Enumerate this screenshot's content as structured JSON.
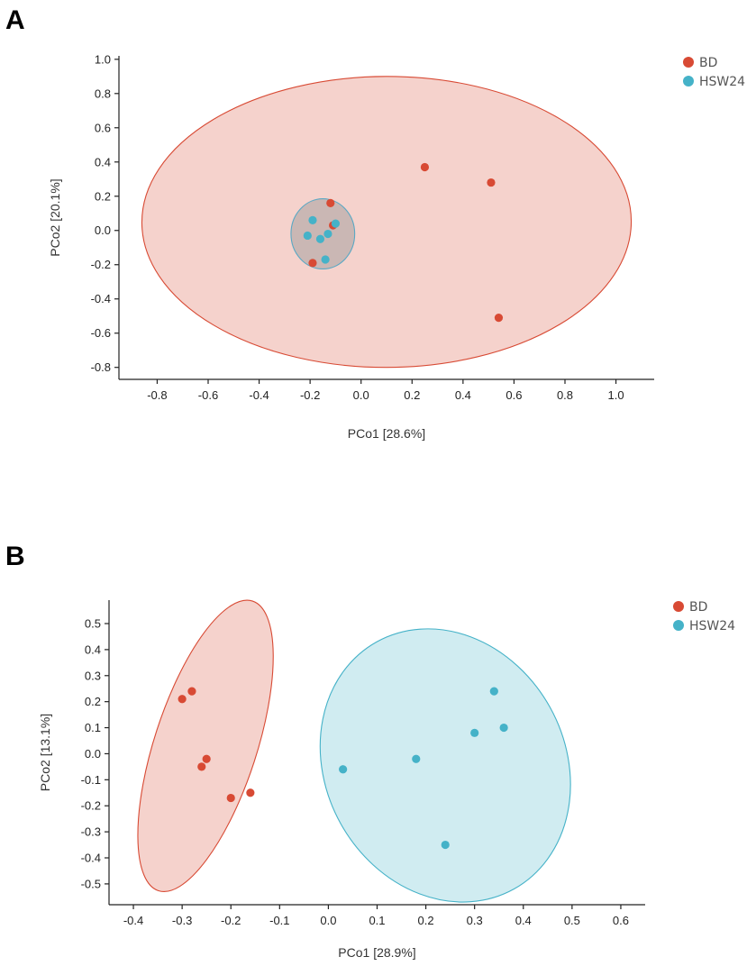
{
  "colors": {
    "BD": "#d84a34",
    "HSW24": "#45b2c8"
  },
  "chart_data": [
    {
      "panel": "A",
      "type": "scatter",
      "xlabel": "PCo1 [28.6%]",
      "ylabel": "PCo2 [20.1%]",
      "xlim": [
        -0.95,
        1.15
      ],
      "ylim": [
        -0.87,
        1.02
      ],
      "xticks": [
        -0.8,
        -0.6,
        -0.4,
        -0.2,
        0.0,
        0.2,
        0.4,
        0.6,
        0.8,
        1.0
      ],
      "xtick_labels": [
        "-0.8",
        "-0.6",
        "-0.4",
        "-0.2",
        "0.0",
        "0.2",
        "0.4",
        "0.6",
        "0.8",
        "1.0"
      ],
      "yticks": [
        -0.8,
        -0.6,
        -0.4,
        -0.2,
        0.0,
        0.2,
        0.4,
        0.6,
        0.8,
        1.0
      ],
      "ytick_labels": [
        "-0.8",
        "-0.6",
        "-0.4",
        "-0.2",
        "0.0",
        "0.2",
        "0.4",
        "0.6",
        "0.8",
        "1.0"
      ],
      "legend": [
        "BD",
        "HSW24"
      ],
      "series": [
        {
          "name": "BD",
          "points": [
            [
              0.25,
              0.37
            ],
            [
              0.51,
              0.28
            ],
            [
              0.54,
              -0.51
            ],
            [
              -0.12,
              0.16
            ],
            [
              -0.11,
              0.03
            ],
            [
              -0.19,
              -0.19
            ]
          ]
        },
        {
          "name": "HSW24",
          "points": [
            [
              -0.19,
              0.06
            ],
            [
              -0.21,
              -0.03
            ],
            [
              -0.16,
              -0.05
            ],
            [
              -0.13,
              -0.02
            ],
            [
              -0.1,
              0.04
            ],
            [
              -0.14,
              -0.17
            ]
          ]
        }
      ],
      "ellipses": [
        {
          "group": "BD",
          "cx": 0.1,
          "cy": 0.05,
          "rx": 0.96,
          "ry": 0.85,
          "angle": -0.16
        },
        {
          "group": "HSW24",
          "cx": -0.15,
          "cy": -0.02,
          "rx": 0.125,
          "ry": 0.205,
          "angle": 0
        }
      ]
    },
    {
      "panel": "B",
      "type": "scatter",
      "xlabel": "PCo1 [28.9%]",
      "ylabel": "PCo2 [13.1%]",
      "xlim": [
        -0.45,
        0.65
      ],
      "ylim": [
        -0.58,
        0.59
      ],
      "xticks": [
        -0.4,
        -0.3,
        -0.2,
        -0.1,
        0.0,
        0.1,
        0.2,
        0.3,
        0.4,
        0.5,
        0.6
      ],
      "xtick_labels": [
        "-0.4",
        "-0.3",
        "-0.2",
        "-0.1",
        "0.0",
        "0.1",
        "0.2",
        "0.3",
        "0.4",
        "0.5",
        "0.6"
      ],
      "yticks": [
        -0.5,
        -0.4,
        -0.3,
        -0.2,
        -0.1,
        0.0,
        0.1,
        0.2,
        0.3,
        0.4,
        0.5
      ],
      "ytick_labels": [
        "-0.5",
        "-0.4",
        "-0.3",
        "-0.2",
        "-0.1",
        "0.0",
        "0.1",
        "0.2",
        "0.3",
        "0.4",
        "0.5"
      ],
      "legend": [
        "BD",
        "HSW24"
      ],
      "series": [
        {
          "name": "BD",
          "points": [
            [
              -0.3,
              0.21
            ],
            [
              -0.28,
              0.24
            ],
            [
              -0.25,
              -0.02
            ],
            [
              -0.26,
              -0.05
            ],
            [
              -0.2,
              -0.17
            ],
            [
              -0.16,
              -0.15
            ]
          ]
        },
        {
          "name": "HSW24",
          "points": [
            [
              0.03,
              -0.06
            ],
            [
              0.18,
              -0.02
            ],
            [
              0.3,
              0.08
            ],
            [
              0.34,
              0.24
            ],
            [
              0.36,
              0.1
            ],
            [
              0.24,
              -0.35
            ]
          ]
        }
      ],
      "ellipses": [
        {
          "group": "BD",
          "cx": -0.252,
          "cy": 0.03,
          "rx": 0.105,
          "ry": 0.585,
          "angle": 18
        },
        {
          "group": "HSW24",
          "cx": 0.24,
          "cy": -0.045,
          "rx": 0.29,
          "ry": 0.46,
          "angle": 61
        }
      ]
    }
  ]
}
